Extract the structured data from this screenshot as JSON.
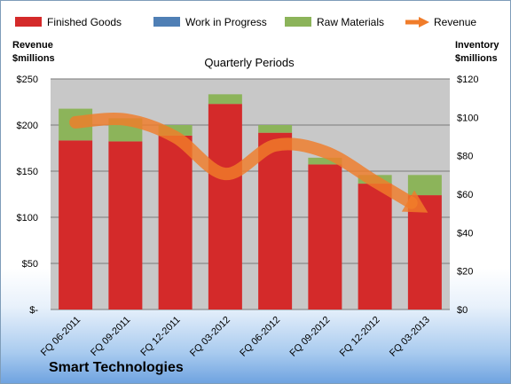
{
  "colors": {
    "finished_goods": "#d42a2a",
    "work_in_progress": "#4f7fb5",
    "raw_materials": "#8cb45a",
    "revenue": "#f07c2a",
    "plot_bg": "#c8c8c8"
  },
  "legend": [
    {
      "key": "finished_goods",
      "label": "Finished Goods"
    },
    {
      "key": "work_in_progress",
      "label": "Work in Progress"
    },
    {
      "key": "raw_materials",
      "label": "Raw Materials"
    },
    {
      "key": "revenue",
      "label": "Revenue"
    }
  ],
  "company": "Smart Technologies",
  "chart_data": {
    "type": "bar",
    "title": "Quarterly Periods",
    "left_axis_title": [
      "Revenue",
      "$millions"
    ],
    "right_axis_title": [
      "Inventory",
      "$millions"
    ],
    "categories": [
      "FQ 06-2011",
      "FQ 09-2011",
      "FQ 12-2011",
      "FQ 03-2012",
      "FQ 06-2012",
      "FQ 09-2012",
      "FQ 12-2012",
      "FQ 03-2013"
    ],
    "series": [
      {
        "name": "Finished Goods",
        "axis": "right",
        "stacked": true,
        "values": [
          88,
          87.5,
          90.5,
          107,
          92,
          75.5,
          65.5,
          59.5
        ]
      },
      {
        "name": "Work in Progress",
        "axis": "right",
        "stacked": true,
        "values": [
          0,
          0,
          0,
          0,
          0,
          0,
          0,
          0
        ]
      },
      {
        "name": "Raw Materials",
        "axis": "right",
        "stacked": true,
        "values": [
          16.5,
          12,
          5.5,
          5,
          4,
          3.5,
          4.5,
          10.5
        ]
      },
      {
        "name": "Revenue",
        "axis": "left",
        "type": "line",
        "values": [
          203,
          206,
          187,
          147,
          178,
          171,
          139,
          107
        ]
      }
    ],
    "left_axis": {
      "min": 0,
      "max": 250,
      "ticks": [
        "$-",
        "$50",
        "$100",
        "$150",
        "$200",
        "$250"
      ]
    },
    "right_axis": {
      "min": 0,
      "max": 120,
      "ticks": [
        "$0",
        "$20",
        "$40",
        "$60",
        "$80",
        "$100",
        "$120"
      ]
    },
    "grid": true,
    "legend_position": "top"
  }
}
